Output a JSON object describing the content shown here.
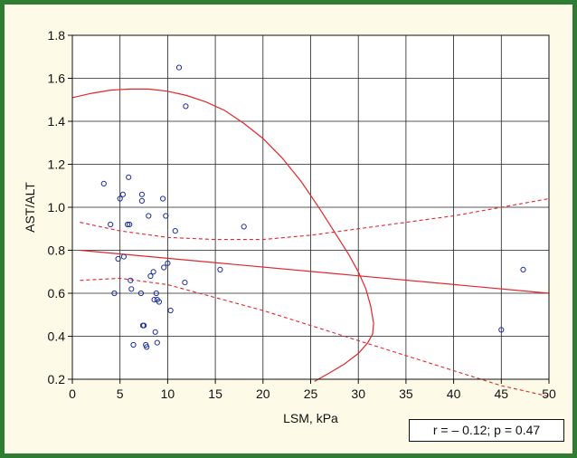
{
  "chart_data": {
    "type": "scatter",
    "xlabel": "LSM, kPa",
    "ylabel": "AST/ALT",
    "xlim": [
      0,
      50
    ],
    "ylim": [
      0.2,
      1.8
    ],
    "x_ticks": [
      0,
      5,
      10,
      15,
      20,
      25,
      30,
      35,
      40,
      45,
      50
    ],
    "y_ticks": [
      0.2,
      0.4,
      0.6,
      0.8,
      1.0,
      1.2,
      1.4,
      1.6,
      1.8
    ],
    "grid": true,
    "points": [
      {
        "x": 3.3,
        "y": 1.11
      },
      {
        "x": 4.0,
        "y": 0.92
      },
      {
        "x": 4.4,
        "y": 0.6
      },
      {
        "x": 4.8,
        "y": 0.76
      },
      {
        "x": 5.0,
        "y": 1.04
      },
      {
        "x": 5.3,
        "y": 1.06
      },
      {
        "x": 5.4,
        "y": 0.77
      },
      {
        "x": 5.8,
        "y": 0.92
      },
      {
        "x": 5.9,
        "y": 1.14
      },
      {
        "x": 6.0,
        "y": 0.92
      },
      {
        "x": 6.1,
        "y": 0.66
      },
      {
        "x": 6.2,
        "y": 0.62
      },
      {
        "x": 6.4,
        "y": 0.36
      },
      {
        "x": 7.2,
        "y": 0.6
      },
      {
        "x": 7.3,
        "y": 1.03
      },
      {
        "x": 7.3,
        "y": 1.06
      },
      {
        "x": 7.4,
        "y": 0.45
      },
      {
        "x": 7.5,
        "y": 0.45
      },
      {
        "x": 7.7,
        "y": 0.36
      },
      {
        "x": 7.8,
        "y": 0.35
      },
      {
        "x": 8.0,
        "y": 0.96
      },
      {
        "x": 8.2,
        "y": 0.68
      },
      {
        "x": 8.5,
        "y": 0.7
      },
      {
        "x": 8.6,
        "y": 0.57
      },
      {
        "x": 8.7,
        "y": 0.42
      },
      {
        "x": 8.8,
        "y": 0.6
      },
      {
        "x": 8.9,
        "y": 0.57
      },
      {
        "x": 8.9,
        "y": 0.37
      },
      {
        "x": 9.1,
        "y": 0.56
      },
      {
        "x": 9.5,
        "y": 1.04
      },
      {
        "x": 9.6,
        "y": 0.72
      },
      {
        "x": 9.8,
        "y": 0.96
      },
      {
        "x": 10.0,
        "y": 0.74
      },
      {
        "x": 10.3,
        "y": 0.52
      },
      {
        "x": 10.8,
        "y": 0.89
      },
      {
        "x": 11.2,
        "y": 1.65
      },
      {
        "x": 11.8,
        "y": 0.65
      },
      {
        "x": 11.9,
        "y": 1.47
      },
      {
        "x": 15.5,
        "y": 0.71
      },
      {
        "x": 18.0,
        "y": 0.91
      },
      {
        "x": 45.0,
        "y": 0.43
      },
      {
        "x": 47.3,
        "y": 0.71
      }
    ],
    "regression_line": {
      "x": [
        0.8,
        50.0
      ],
      "y": [
        0.8,
        0.6
      ]
    },
    "confidence_upper": {
      "x": [
        0.8,
        5,
        10,
        15,
        20,
        25,
        30,
        35,
        40,
        45,
        50
      ],
      "y": [
        0.93,
        0.89,
        0.86,
        0.85,
        0.85,
        0.87,
        0.9,
        0.93,
        0.96,
        1.0,
        1.04
      ]
    },
    "confidence_lower": {
      "x": [
        0.8,
        5,
        10,
        15,
        20,
        25,
        30,
        35,
        40,
        45,
        50
      ],
      "y": [
        0.66,
        0.67,
        0.64,
        0.58,
        0.52,
        0.45,
        0.38,
        0.31,
        0.24,
        0.17,
        0.12
      ]
    },
    "ellipse_arc": {
      "x": [
        0.0,
        2.0,
        4.0,
        6.0,
        8.0,
        10.0,
        12.0,
        14.0,
        16.0,
        18.0,
        20.0,
        22.0,
        24.0,
        26.0,
        28.0,
        29.0,
        30.0,
        30.8,
        31.3,
        31.6,
        31.5,
        31.0,
        30.0,
        28.5,
        27.0,
        25.4
      ],
      "y": [
        1.51,
        1.53,
        1.545,
        1.55,
        1.55,
        1.54,
        1.52,
        1.49,
        1.45,
        1.39,
        1.32,
        1.23,
        1.12,
        0.99,
        0.85,
        0.78,
        0.7,
        0.62,
        0.54,
        0.46,
        0.41,
        0.37,
        0.32,
        0.27,
        0.23,
        0.19
      ]
    },
    "annotation": "r = – 0.12; p = 0.47",
    "colors": {
      "points": "#1f2fa0",
      "lines": "#e3262c",
      "frame": "#2e7d32",
      "background": "#fdfbe7"
    }
  }
}
